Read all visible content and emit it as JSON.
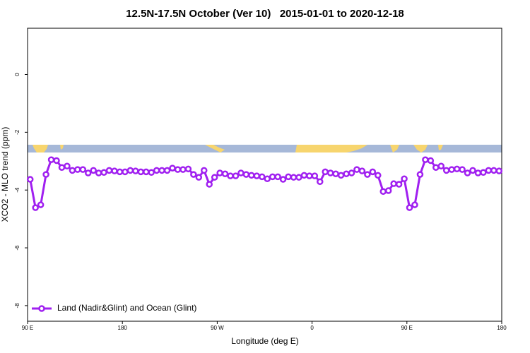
{
  "chart_data": {
    "type": "line",
    "title": "12.5N-17.5N October (Ver 10)   2015-01-01 to 2020-12-18",
    "x_label": "Longitude (deg E)",
    "y_label": "XCO2 - MLO trend (ppm)",
    "xlim": [
      90,
      540
    ],
    "xticks": [
      {
        "value": 90,
        "label": "90 E"
      },
      {
        "value": 180,
        "label": "180"
      },
      {
        "value": 270,
        "label": "90 W"
      },
      {
        "value": 360,
        "label": "0"
      },
      {
        "value": 450,
        "label": "90 E"
      },
      {
        "value": 540,
        "label": "180"
      }
    ],
    "ylim": [
      -8.54,
      1.6
    ],
    "yticks": [
      0,
      -2,
      -4,
      -6,
      -8
    ],
    "legend_position": "bottom-left",
    "x": [
      92.5,
      97.5,
      102.5,
      107.5,
      112.5,
      117.5,
      122.5,
      127.5,
      132.5,
      137.5,
      142.5,
      147.5,
      152.5,
      157.5,
      162.5,
      167.5,
      172.5,
      177.5,
      182.5,
      187.5,
      192.5,
      197.5,
      202.5,
      207.5,
      212.5,
      217.5,
      222.5,
      227.5,
      232.5,
      237.5,
      242.5,
      247.5,
      252.5,
      257.5,
      262.5,
      267.5,
      272.5,
      277.5,
      282.5,
      287.5,
      292.5,
      297.5,
      302.5,
      307.5,
      312.5,
      317.5,
      322.5,
      327.5,
      332.5,
      337.5,
      342.5,
      347.5,
      352.5,
      357.5,
      362.5,
      367.5,
      372.5,
      377.5,
      382.5,
      387.5,
      392.5,
      397.5,
      402.5,
      407.5,
      412.5,
      417.5,
      422.5,
      427.5,
      432.5,
      437.5,
      442.5,
      447.5,
      452.5,
      457.5,
      462.5,
      467.5,
      472.5,
      477.5,
      482.5,
      487.5,
      492.5,
      497.5,
      502.5,
      507.5,
      512.5,
      517.5,
      522.5,
      527.5,
      532.5,
      537.5
    ],
    "series": [
      {
        "name": "Land (Nadir&Glint) and Ocean (Glint)",
        "color": "#a020f0",
        "values": [
          -3.63,
          -4.61,
          -4.51,
          -3.46,
          -2.95,
          -2.98,
          -3.22,
          -3.17,
          -3.32,
          -3.29,
          -3.29,
          -3.41,
          -3.32,
          -3.41,
          -3.39,
          -3.32,
          -3.34,
          -3.37,
          -3.37,
          -3.32,
          -3.34,
          -3.37,
          -3.37,
          -3.39,
          -3.32,
          -3.32,
          -3.32,
          -3.24,
          -3.29,
          -3.29,
          -3.27,
          -3.46,
          -3.56,
          -3.32,
          -3.8,
          -3.56,
          -3.41,
          -3.44,
          -3.51,
          -3.51,
          -3.41,
          -3.46,
          -3.49,
          -3.51,
          -3.54,
          -3.61,
          -3.54,
          -3.54,
          -3.63,
          -3.54,
          -3.56,
          -3.56,
          -3.49,
          -3.51,
          -3.51,
          -3.71,
          -3.37,
          -3.41,
          -3.44,
          -3.49,
          -3.44,
          -3.41,
          -3.29,
          -3.34,
          -3.46,
          -3.37,
          -3.49,
          -4.05,
          -4.02,
          -3.78,
          -3.8,
          -3.61,
          -4.61,
          -4.51,
          -3.46,
          -2.95,
          -2.98,
          -3.22,
          -3.17,
          -3.32,
          -3.29,
          -3.27,
          -3.29,
          -3.41,
          -3.32,
          -3.41,
          -3.39,
          -3.32,
          -3.32,
          -3.34
        ]
      }
    ]
  }
}
